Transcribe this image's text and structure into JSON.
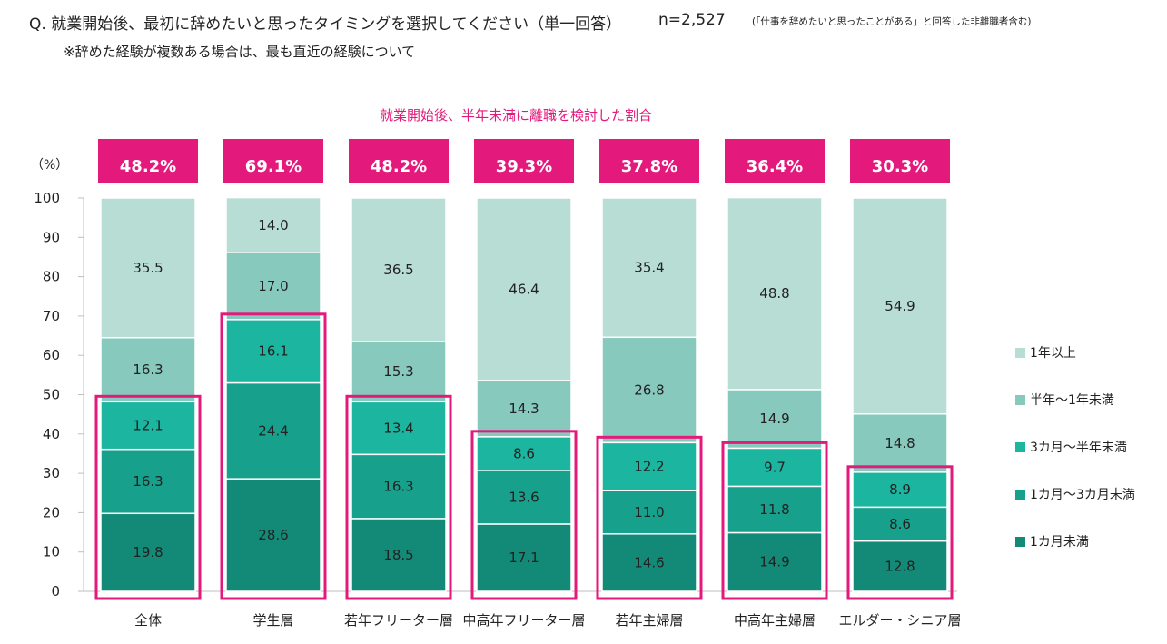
{
  "question": "Q. 就業開始後、最初に辞めたいと思ったタイミングを選択してください（単一回答）",
  "sample_size": "n=2,527",
  "sample_note": "(「仕事を辞めたいと思ったことがある」と回答した非離職者含む)",
  "question_note": "※辞めた経験が複数ある場合は、最も直近の経験について",
  "chart_data": {
    "type": "stacked-bar",
    "ylabel": "（%）",
    "ylim": [
      0,
      100
    ],
    "yticks": [
      "0",
      "10",
      "20",
      "30",
      "40",
      "50",
      "60",
      "70",
      "80",
      "90",
      "100"
    ],
    "categories": [
      "全体",
      "学生層",
      "若年フリーター層",
      "中高年フリーター層",
      "若年主婦層",
      "中高年主婦層",
      "エルダー・シニア層"
    ],
    "series": [
      {
        "name": "1カ月未満",
        "color": "#138a78",
        "values": [
          19.8,
          28.6,
          18.5,
          17.1,
          14.6,
          14.9,
          12.8
        ]
      },
      {
        "name": "1カ月～3カ月未満",
        "color": "#17a08b",
        "values": [
          16.3,
          24.4,
          16.3,
          13.6,
          11.0,
          11.8,
          8.6
        ]
      },
      {
        "name": "3カ月～半年未満",
        "color": "#1bb5a0",
        "values": [
          12.1,
          16.1,
          13.4,
          8.6,
          12.2,
          9.7,
          8.9
        ]
      },
      {
        "name": "半年～1年未満",
        "color": "#88c9bd",
        "values": [
          16.3,
          17.0,
          15.3,
          14.3,
          26.8,
          14.9,
          14.8
        ]
      },
      {
        "name": "1年以上",
        "color": "#b7ddd5",
        "values": [
          35.5,
          14.0,
          36.5,
          46.4,
          35.4,
          48.8,
          54.9
        ]
      }
    ],
    "annotation": "就業開始後、半年未満に離職を検討した割合",
    "highlight_totals": [
      "48.2%",
      "69.1%",
      "48.2%",
      "39.3%",
      "37.8%",
      "36.4%",
      "30.3%"
    ],
    "highlight_color": "#e4197c"
  }
}
